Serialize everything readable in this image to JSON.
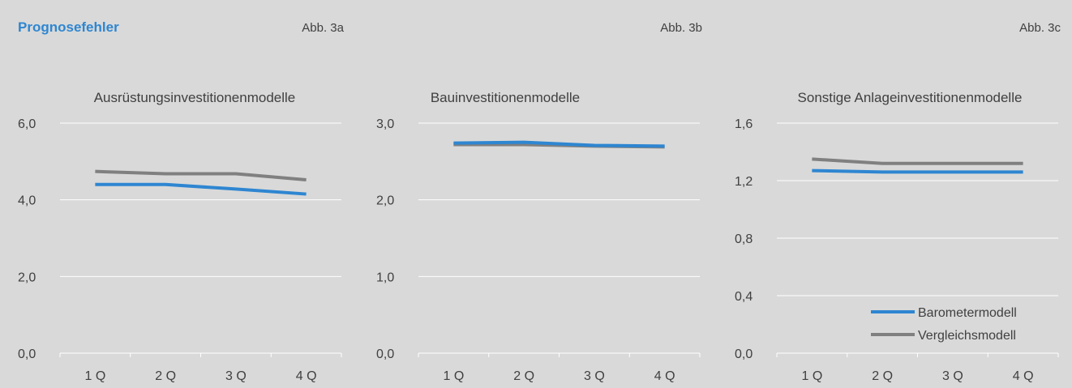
{
  "header": {
    "title": "Prognosefehler",
    "tags": [
      "Abb. 3a",
      "Abb. 3b",
      "Abb. 3c"
    ]
  },
  "colors": {
    "background": "#d9d9d9",
    "header_title": "#2e86d1",
    "text": "#404040",
    "gridline": "#ffffff"
  },
  "chart_data": [
    {
      "type": "line",
      "title": "Ausrüstungsinvestitionenmodelle",
      "categories": [
        "1 Q",
        "2 Q",
        "3 Q",
        "4 Q"
      ],
      "ylim": [
        0,
        6
      ],
      "yticks": [
        "0,0",
        "2,0",
        "4,0",
        "6,0"
      ],
      "grid": true,
      "series": [
        {
          "name": "Barometermodell",
          "color": "#2e86d1",
          "values": [
            4.4,
            4.4,
            4.28,
            4.15
          ]
        },
        {
          "name": "Vergleichsmodell",
          "color": "#808080",
          "values": [
            4.74,
            4.68,
            4.68,
            4.52
          ]
        }
      ]
    },
    {
      "type": "line",
      "title": "Bauinvestitionenmodelle",
      "categories": [
        "1 Q",
        "2 Q",
        "3 Q",
        "4 Q"
      ],
      "ylim": [
        0,
        3
      ],
      "yticks": [
        "0,0",
        "1,0",
        "2,0",
        "3,0"
      ],
      "grid": true,
      "series": [
        {
          "name": "Barometermodell",
          "color": "#2e86d1",
          "values": [
            2.74,
            2.75,
            2.71,
            2.7
          ]
        },
        {
          "name": "Vergleichsmodell",
          "color": "#808080",
          "values": [
            2.72,
            2.72,
            2.7,
            2.69
          ]
        }
      ]
    },
    {
      "type": "line",
      "title": "Sonstige Anlageinvestitionenmodelle",
      "categories": [
        "1 Q",
        "2 Q",
        "3 Q",
        "4 Q"
      ],
      "ylim": [
        0,
        1.6
      ],
      "yticks": [
        "0,0",
        "0,4",
        "0,8",
        "1,2",
        "1,6"
      ],
      "grid": true,
      "legend": "bottom-right",
      "series": [
        {
          "name": "Barometermodell",
          "color": "#2e86d1",
          "values": [
            1.27,
            1.26,
            1.26,
            1.26
          ]
        },
        {
          "name": "Vergleichsmodell",
          "color": "#808080",
          "values": [
            1.35,
            1.32,
            1.32,
            1.32
          ]
        }
      ]
    }
  ]
}
